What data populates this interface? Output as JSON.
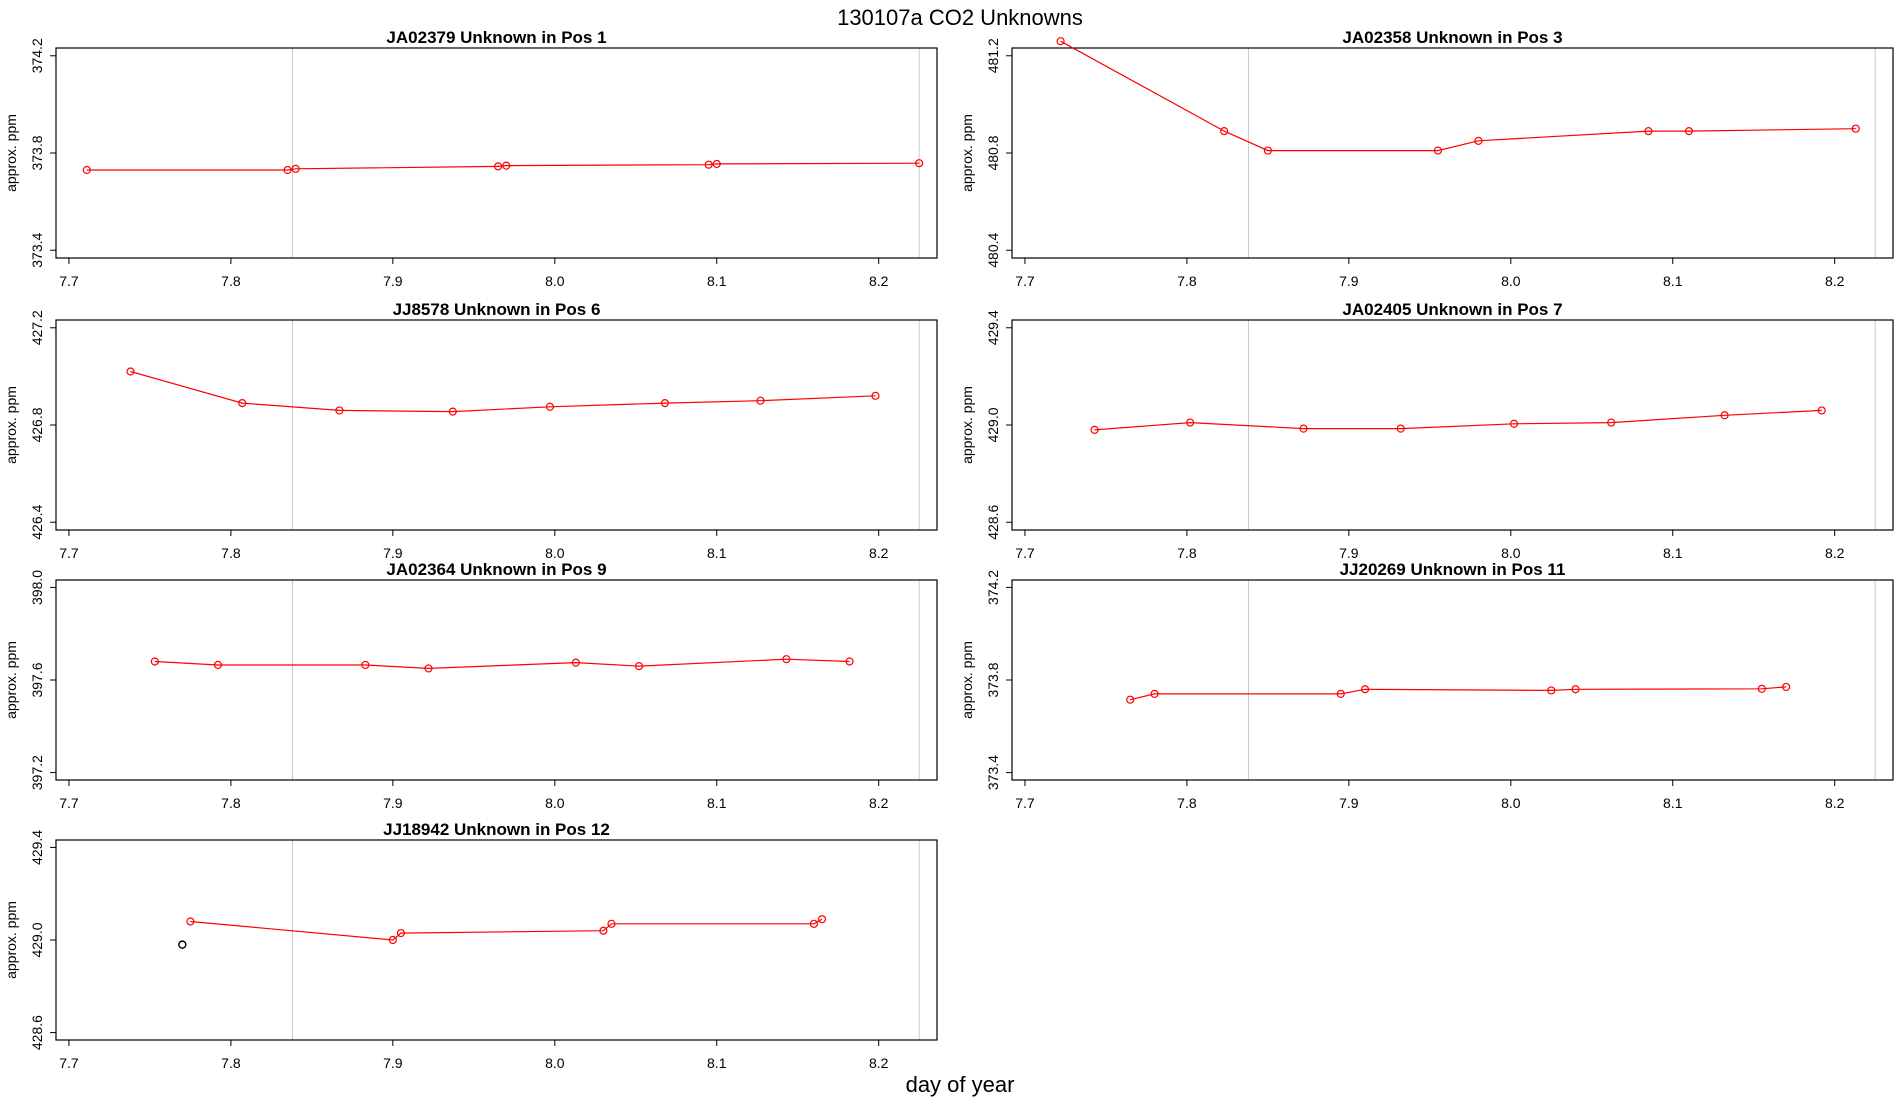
{
  "figure": {
    "title": "130107a  CO2 Unknowns",
    "xlabel": "day of year"
  },
  "colors": {
    "series": "#ff0000",
    "outlier": "#000000",
    "vline": "#c8c8c8",
    "axis": "#000000"
  },
  "chart_data": [
    {
      "type": "line",
      "title": "JA02379    Unknown in Pos 1",
      "xlabel": "",
      "ylabel": "approx. ppm",
      "xlim": [
        7.7,
        8.2
      ],
      "ylim": [
        373.4,
        374.2
      ],
      "xticks": [
        "7.7",
        "7.8",
        "7.9",
        "8.0",
        "8.1",
        "8.2"
      ],
      "yticks": [
        "373.4",
        "373.8",
        "374.2"
      ],
      "vlines": [
        7.838,
        8.225
      ],
      "series": [
        {
          "x": [
            7.711,
            7.835,
            7.84,
            7.965,
            7.97,
            8.095,
            8.1,
            8.225
          ],
          "y": [
            373.73,
            373.73,
            373.735,
            373.745,
            373.748,
            373.752,
            373.755,
            373.758
          ]
        }
      ],
      "outliers": []
    },
    {
      "type": "line",
      "title": "JA02358    Unknown in Pos 3",
      "xlabel": "",
      "ylabel": "approx. ppm",
      "xlim": [
        7.7,
        8.2
      ],
      "ylim": [
        480.4,
        481.2
      ],
      "xticks": [
        "7.7",
        "7.8",
        "7.9",
        "8.0",
        "8.1",
        "8.2"
      ],
      "yticks": [
        "480.4",
        "480.8",
        "481.2"
      ],
      "vlines": [
        7.838,
        8.225
      ],
      "series": [
        {
          "x": [
            7.722,
            7.823,
            7.85,
            7.955,
            7.98,
            8.085,
            8.11,
            8.213
          ],
          "y": [
            481.26,
            480.89,
            480.81,
            480.81,
            480.85,
            480.89,
            480.89,
            480.9
          ]
        }
      ],
      "outliers": []
    },
    {
      "type": "line",
      "title": "JJ8578    Unknown in Pos 6",
      "xlabel": "",
      "ylabel": "approx. ppm",
      "xlim": [
        7.7,
        8.2
      ],
      "ylim": [
        426.4,
        427.2
      ],
      "xticks": [
        "7.7",
        "7.8",
        "7.9",
        "8.0",
        "8.1",
        "8.2"
      ],
      "yticks": [
        "426.4",
        "426.8",
        "427.2"
      ],
      "vlines": [
        7.838,
        8.225
      ],
      "series": [
        {
          "x": [
            7.738,
            7.807,
            7.867,
            7.937,
            7.997,
            8.068,
            8.127,
            8.198
          ],
          "y": [
            427.02,
            426.89,
            426.86,
            426.855,
            426.875,
            426.89,
            426.9,
            426.92
          ]
        }
      ],
      "outliers": []
    },
    {
      "type": "line",
      "title": "JA02405    Unknown in Pos 7",
      "xlabel": "",
      "ylabel": "approx. ppm",
      "xlim": [
        7.7,
        8.2
      ],
      "ylim": [
        428.6,
        429.4
      ],
      "xticks": [
        "7.7",
        "7.8",
        "7.9",
        "8.0",
        "8.1",
        "8.2"
      ],
      "yticks": [
        "428.6",
        "429.0",
        "429.4"
      ],
      "vlines": [
        7.838,
        8.225
      ],
      "series": [
        {
          "x": [
            7.743,
            7.802,
            7.872,
            7.932,
            8.002,
            8.062,
            8.132,
            8.192
          ],
          "y": [
            428.98,
            429.01,
            428.985,
            428.985,
            429.005,
            429.01,
            429.04,
            429.06
          ]
        }
      ],
      "outliers": []
    },
    {
      "type": "line",
      "title": "JA02364    Unknown in Pos 9",
      "xlabel": "",
      "ylabel": "approx. ppm",
      "xlim": [
        7.7,
        8.2
      ],
      "ylim": [
        397.2,
        398.0
      ],
      "xticks": [
        "7.7",
        "7.8",
        "7.9",
        "8.0",
        "8.1",
        "8.2"
      ],
      "yticks": [
        "397.2",
        "397.6",
        "398.0"
      ],
      "vlines": [
        7.838,
        8.225
      ],
      "series": [
        {
          "x": [
            7.753,
            7.792,
            7.883,
            7.922,
            8.013,
            8.052,
            8.143,
            8.182
          ],
          "y": [
            397.68,
            397.665,
            397.665,
            397.65,
            397.675,
            397.66,
            397.69,
            397.68
          ]
        }
      ],
      "outliers": []
    },
    {
      "type": "line",
      "title": "JJ20269    Unknown in Pos 11",
      "xlabel": "",
      "ylabel": "approx. ppm",
      "xlim": [
        7.7,
        8.2
      ],
      "ylim": [
        373.4,
        374.2
      ],
      "xticks": [
        "7.7",
        "7.8",
        "7.9",
        "8.0",
        "8.1",
        "8.2"
      ],
      "yticks": [
        "373.4",
        "373.8",
        "374.2"
      ],
      "vlines": [
        7.838,
        8.225
      ],
      "series": [
        {
          "x": [
            7.765,
            7.78,
            7.895,
            7.91,
            8.025,
            8.04,
            8.155,
            8.17
          ],
          "y": [
            373.715,
            373.74,
            373.74,
            373.76,
            373.755,
            373.76,
            373.762,
            373.77
          ]
        }
      ],
      "outliers": []
    },
    {
      "type": "line",
      "title": "JJ18942    Unknown in Pos 12",
      "xlabel": "",
      "ylabel": "approx. ppm",
      "xlim": [
        7.7,
        8.2
      ],
      "ylim": [
        428.6,
        429.4
      ],
      "xticks": [
        "7.7",
        "7.8",
        "7.9",
        "8.0",
        "8.1",
        "8.2"
      ],
      "yticks": [
        "428.6",
        "429.0",
        "429.4"
      ],
      "vlines": [
        7.838,
        8.225
      ],
      "series": [
        {
          "x": [
            7.775,
            7.9,
            7.905,
            8.03,
            8.035,
            8.16,
            8.165
          ],
          "y": [
            429.08,
            429.0,
            429.03,
            429.04,
            429.07,
            429.07,
            429.09
          ]
        }
      ],
      "outliers": [
        {
          "x": [
            7.77
          ],
          "y": [
            428.98
          ]
        }
      ]
    }
  ]
}
